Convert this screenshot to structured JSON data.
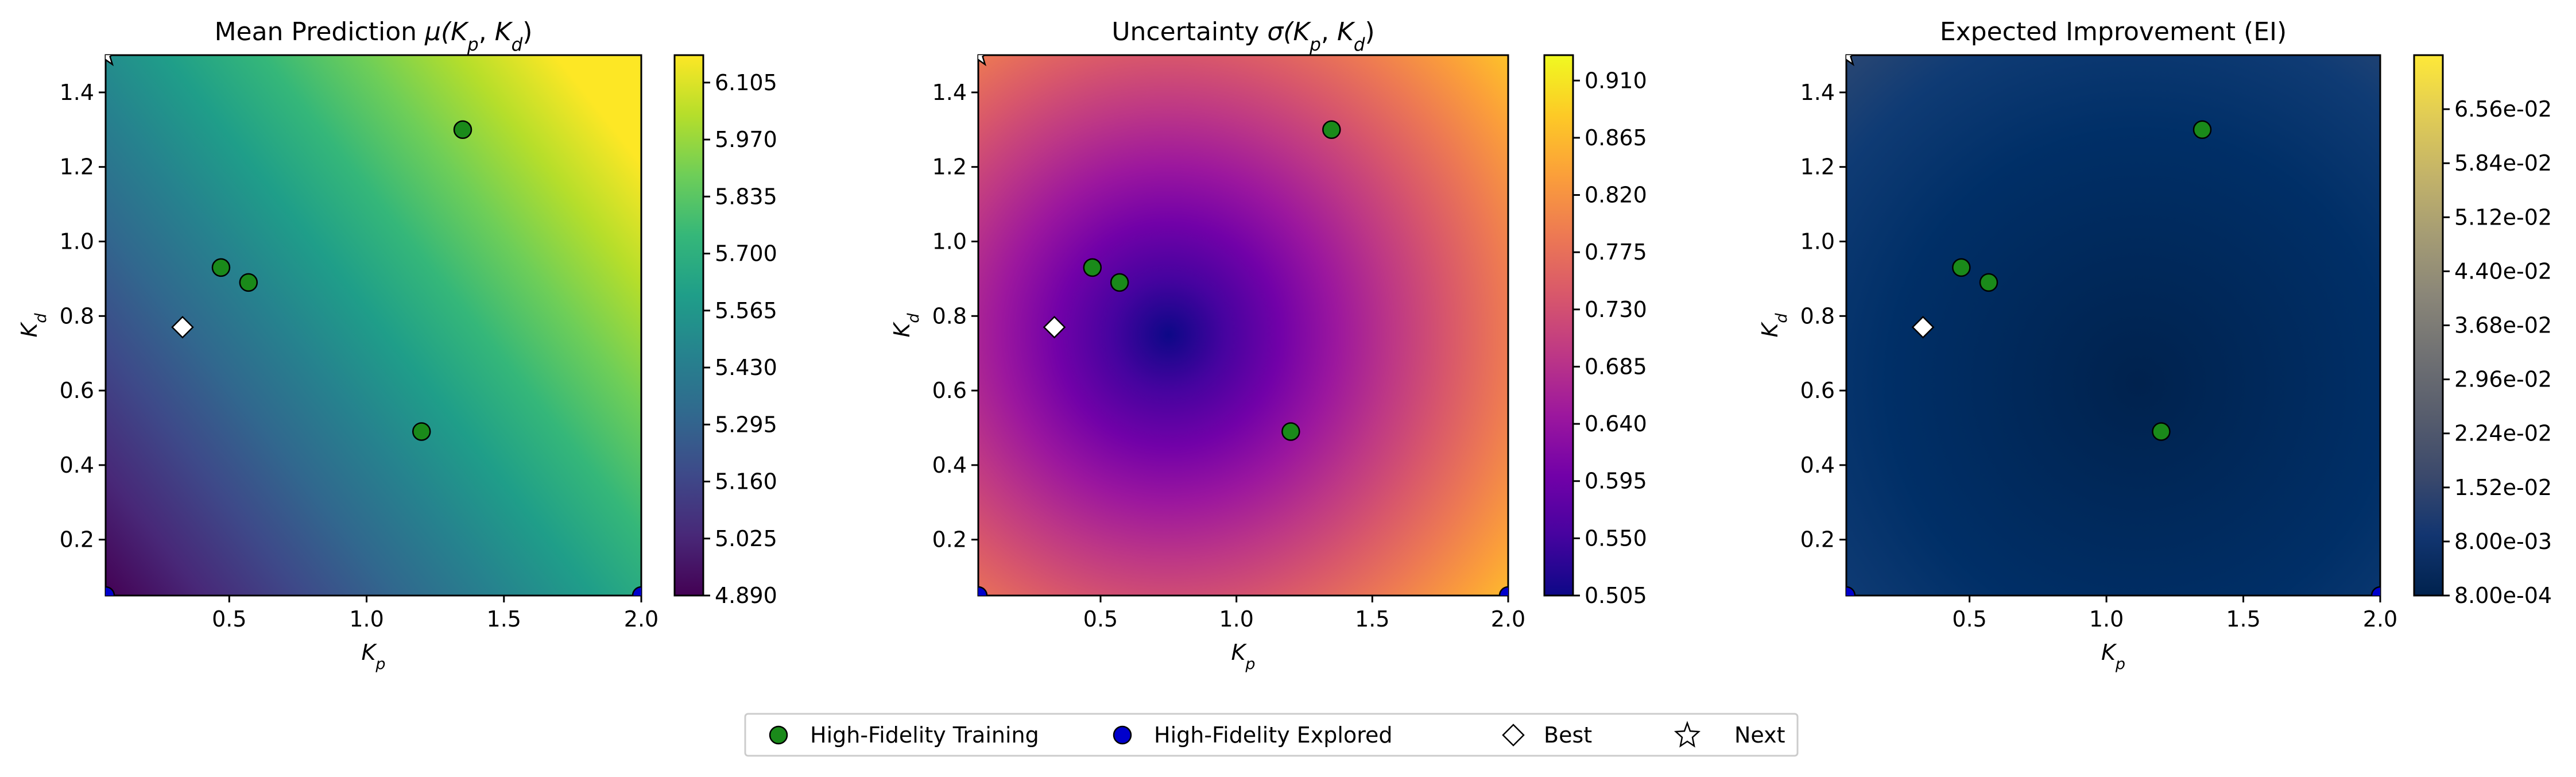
{
  "chart_data": [
    {
      "type": "heatmap",
      "title": "Mean Prediction μ(Kp, Kd)",
      "title_parts": {
        "prefix": "Mean Prediction ",
        "sym": "μ",
        "a": "K",
        "a_sub": "p",
        "b": "K",
        "b_sub": "d"
      },
      "xlabel": {
        "main": "K",
        "sub": "p"
      },
      "ylabel": {
        "main": "K",
        "sub": "d"
      },
      "xlim": [
        0.05,
        2.0
      ],
      "ylim": [
        0.05,
        1.5
      ],
      "x_ticks": [
        "0.5",
        "1.0",
        "1.5",
        "2.0"
      ],
      "y_ticks": [
        "0.2",
        "0.4",
        "0.6",
        "0.8",
        "1.0",
        "1.2",
        "1.4"
      ],
      "colormap": "viridis",
      "colorbar_ticks": [
        "4.890",
        "5.025",
        "5.160",
        "5.295",
        "5.430",
        "5.565",
        "5.700",
        "5.835",
        "5.970",
        "6.105"
      ],
      "colorbar_range": [
        4.89,
        6.17
      ]
    },
    {
      "type": "heatmap",
      "title": "Uncertainty σ(Kp, Kd)",
      "title_parts": {
        "prefix": "Uncertainty ",
        "sym": "σ",
        "a": "K",
        "a_sub": "p",
        "b": "K",
        "b_sub": "d"
      },
      "xlabel": {
        "main": "K",
        "sub": "p"
      },
      "ylabel": {
        "main": "K",
        "sub": "d"
      },
      "xlim": [
        0.05,
        2.0
      ],
      "ylim": [
        0.05,
        1.5
      ],
      "x_ticks": [
        "0.5",
        "1.0",
        "1.5",
        "2.0"
      ],
      "y_ticks": [
        "0.2",
        "0.4",
        "0.6",
        "0.8",
        "1.0",
        "1.2",
        "1.4"
      ],
      "colormap": "plasma",
      "colorbar_ticks": [
        "0.505",
        "0.550",
        "0.595",
        "0.640",
        "0.685",
        "0.730",
        "0.775",
        "0.820",
        "0.865",
        "0.910"
      ],
      "colorbar_range": [
        0.505,
        0.93
      ]
    },
    {
      "type": "heatmap",
      "title": "Expected Improvement (EI)",
      "xlabel": {
        "main": "K",
        "sub": "p"
      },
      "ylabel": {
        "main": "K",
        "sub": "d"
      },
      "xlim": [
        0.05,
        2.0
      ],
      "ylim": [
        0.05,
        1.5
      ],
      "x_ticks": [
        "0.5",
        "1.0",
        "1.5",
        "2.0"
      ],
      "y_ticks": [
        "0.2",
        "0.4",
        "0.6",
        "0.8",
        "1.0",
        "1.2",
        "1.4"
      ],
      "colormap": "cividis",
      "colorbar_ticks": [
        "8.00e-04",
        "8.00e-03",
        "1.52e-02",
        "2.24e-02",
        "2.96e-02",
        "3.68e-02",
        "4.40e-02",
        "5.12e-02",
        "5.84e-02",
        "6.56e-02"
      ],
      "colorbar_range": [
        0.0008,
        0.0728
      ]
    }
  ],
  "points": {
    "hf_training": [
      {
        "x": 0.47,
        "y": 0.93
      },
      {
        "x": 0.57,
        "y": 0.89
      },
      {
        "x": 1.35,
        "y": 1.3
      },
      {
        "x": 1.2,
        "y": 0.49
      }
    ],
    "hf_explored": [
      {
        "x": 0.05,
        "y": 0.05
      },
      {
        "x": 2.0,
        "y": 0.05
      }
    ],
    "best": {
      "x": 0.33,
      "y": 0.77
    },
    "next": {
      "x": 0.05,
      "y": 1.5
    }
  },
  "legend": {
    "placement": "bottom-center",
    "items": [
      {
        "label": "High-Fidelity Training",
        "marker": "circle",
        "color": "#1a8a1a"
      },
      {
        "label": "High-Fidelity Explored",
        "marker": "circle",
        "color": "#0000cc"
      },
      {
        "label": "Best",
        "marker": "diamond",
        "color": "#ffffff"
      },
      {
        "label": "Next",
        "marker": "star",
        "color": "#ffffff"
      }
    ]
  }
}
